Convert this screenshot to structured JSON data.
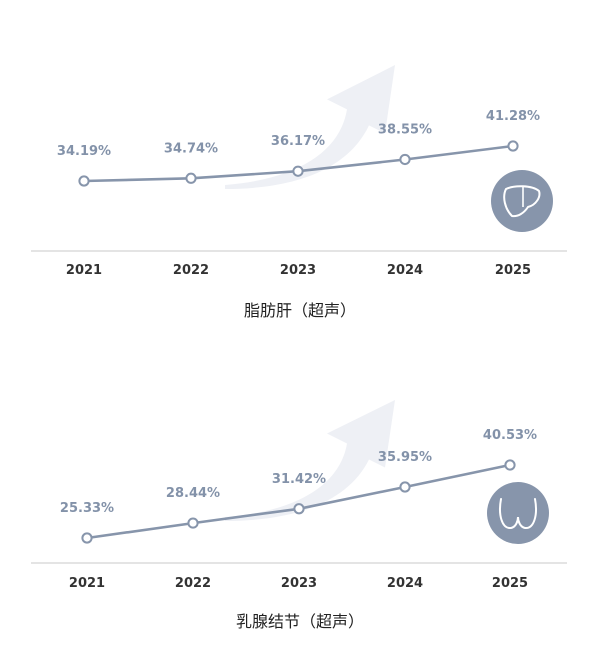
{
  "colors": {
    "line": "#8795ab",
    "value_label": "#8392a9",
    "axis": "#d4d4d4",
    "tick_text": "#333333",
    "title_text": "#222222",
    "arrow": "#eef0f5",
    "icon_circle": "#8795ab"
  },
  "chart_data": [
    {
      "type": "line",
      "title": "脂肪肝（超声）",
      "icon": "liver-icon",
      "categories": [
        "2021",
        "2022",
        "2023",
        "2024",
        "2025"
      ],
      "values": [
        34.19,
        34.74,
        36.17,
        38.55,
        41.28
      ],
      "labels": [
        "34.19%",
        "34.74%",
        "36.17%",
        "38.55%",
        "41.28%"
      ],
      "xlabel": "",
      "ylabel": "",
      "ylim": [
        30,
        44
      ],
      "grid": false,
      "legend": "none"
    },
    {
      "type": "line",
      "title": "乳腺结节（超声）",
      "icon": "breast-icon",
      "categories": [
        "2021",
        "2022",
        "2023",
        "2024",
        "2025"
      ],
      "values": [
        25.33,
        28.44,
        31.42,
        35.95,
        40.53
      ],
      "labels": [
        "25.33%",
        "28.44%",
        "31.42%",
        "35.95%",
        "40.53%"
      ],
      "xlabel": "",
      "ylabel": "",
      "ylim": [
        22,
        43
      ],
      "grid": false,
      "legend": "none"
    }
  ]
}
